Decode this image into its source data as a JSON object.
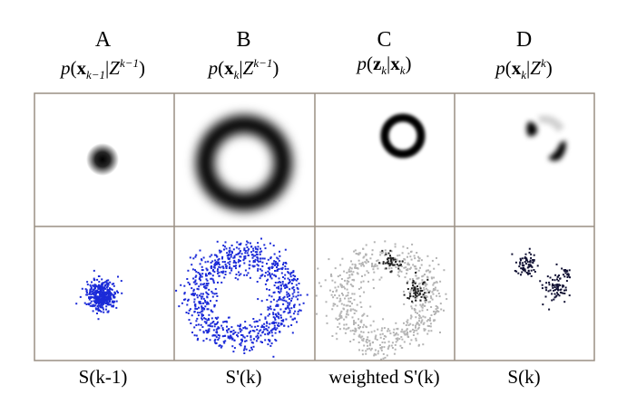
{
  "columns": [
    {
      "letter": "A",
      "caption": "S(k-1)",
      "dot_color": "#1c2bd8"
    },
    {
      "letter": "B",
      "caption": "S'(k)",
      "dot_color": "#1c2bd8"
    },
    {
      "letter": "C",
      "caption": "weighted S'(k)",
      "dot_color": "#b4b4b4"
    },
    {
      "letter": "D",
      "caption": "S(k)",
      "dot_color": "#111133"
    }
  ],
  "expressions": {
    "a_sub": "k−1",
    "a_sup": "k−1",
    "b_sub": "k",
    "b_sup": "k−1",
    "c_sub": "k",
    "d_sub": "k",
    "d_sup": "k"
  },
  "colors": {
    "grid": "#9a8f83",
    "blob": "#000000",
    "particles_blue": "#1c2bd8",
    "particles_grey": "#b4b4b4",
    "particles_dark": "#111133"
  }
}
